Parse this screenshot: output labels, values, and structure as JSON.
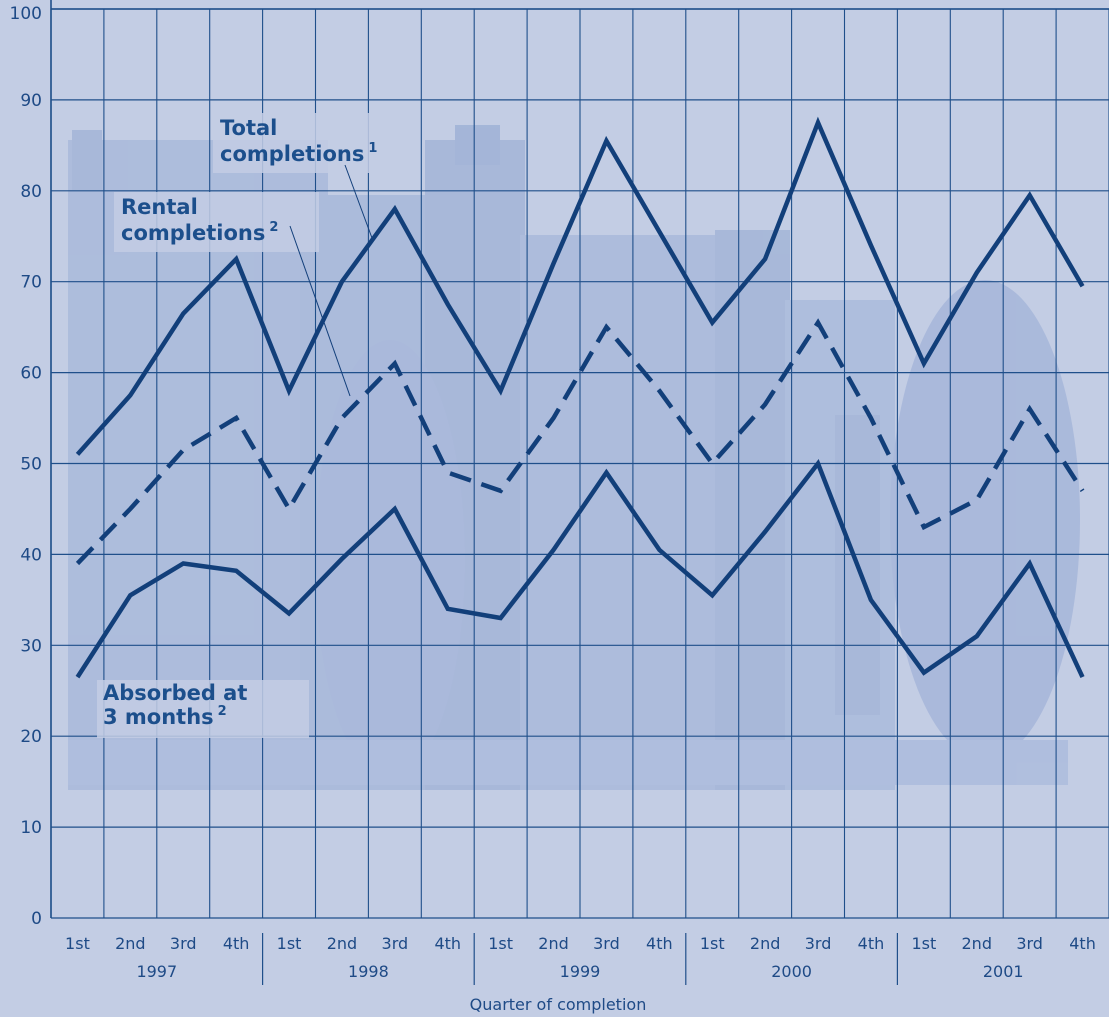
{
  "chart_data": {
    "type": "line",
    "title": "",
    "xlabel": "Quarter of completion",
    "ylabel": "",
    "ylim": [
      0,
      100
    ],
    "yticks": [
      0,
      10,
      20,
      30,
      40,
      50,
      60,
      70,
      80,
      90,
      100
    ],
    "years": [
      "1997",
      "1998",
      "1999",
      "2000",
      "2001"
    ],
    "quarter_labels": [
      "1st",
      "2nd",
      "3rd",
      "4th"
    ],
    "categories": [
      "1997 1st",
      "1997 2nd",
      "1997 3rd",
      "1997 4th",
      "1998 1st",
      "1998 2nd",
      "1998 3rd",
      "1998 4th",
      "1999 1st",
      "1999 2nd",
      "1999 3rd",
      "1999 4th",
      "2000 1st",
      "2000 2nd",
      "2000 3rd",
      "2000 4th",
      "2001 1st",
      "2001 2nd",
      "2001 3rd",
      "2001 4th"
    ],
    "grid": true,
    "series": [
      {
        "name": "Total completions",
        "sup": "1",
        "style": "solid",
        "values": [
          51,
          57.5,
          66.5,
          72.5,
          58,
          70,
          78,
          67.5,
          58,
          72,
          85.5,
          75.5,
          65.5,
          72.5,
          87.5,
          74,
          61,
          71,
          79.5,
          69.5
        ]
      },
      {
        "name": "Rental completions",
        "sup": "2",
        "style": "dashed",
        "values": [
          39,
          45,
          51.5,
          55,
          45,
          55,
          61,
          49,
          47,
          55,
          65,
          58,
          50,
          56.5,
          65.5,
          55,
          43,
          46,
          56,
          47
        ]
      },
      {
        "name": "Absorbed at 3 months",
        "sup": "2",
        "style": "solid",
        "values": [
          26.5,
          35.5,
          39,
          38.2,
          33.5,
          39.5,
          45,
          34,
          33,
          40.5,
          49,
          40.5,
          35.5,
          42.5,
          50,
          35,
          27,
          31,
          39,
          26.5
        ]
      }
    ],
    "annotations": [
      {
        "lines": [
          "Total",
          "completions"
        ],
        "sup": "1"
      },
      {
        "lines": [
          "Rental",
          "completions"
        ],
        "sup": "2"
      },
      {
        "lines": [
          "Absorbed at",
          "3 months"
        ],
        "sup": "2"
      }
    ],
    "colors": {
      "background": "#c3cde4",
      "grid": "#1f4f8a",
      "line": "#123f7a",
      "text": "#1e4a86",
      "picture_tint": "#9fb1d6"
    }
  }
}
